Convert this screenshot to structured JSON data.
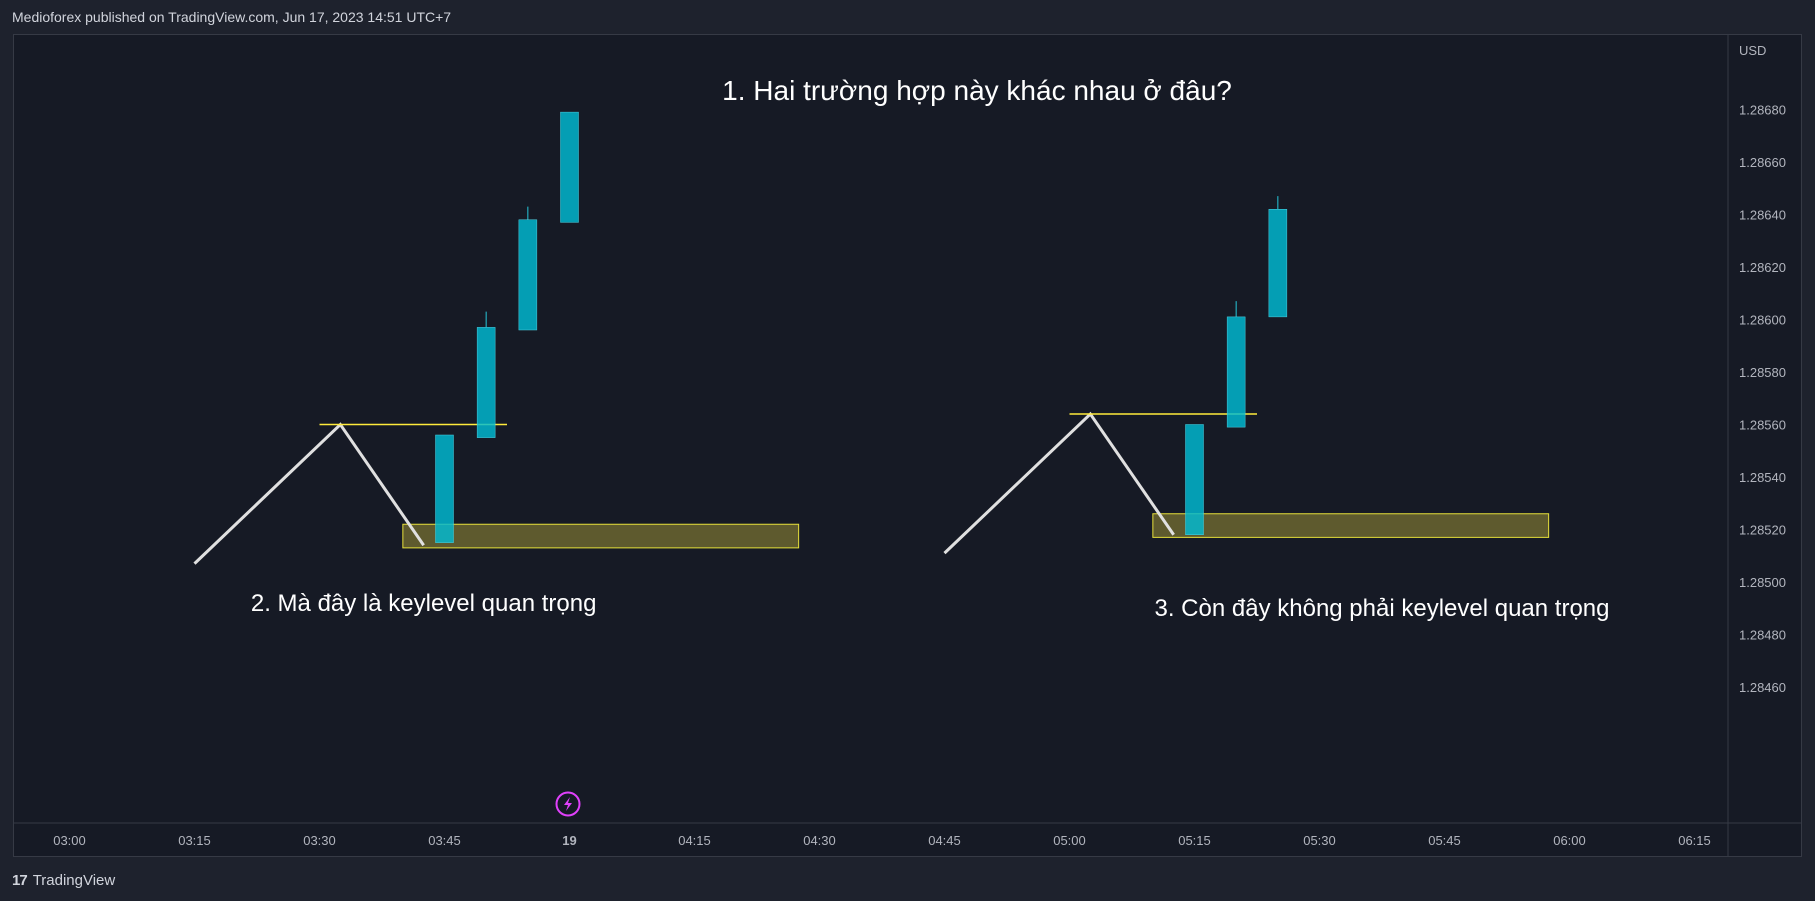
{
  "header": {
    "text": "Medioforex published on TradingView.com, Jun 17, 2023 14:51 UTC+7"
  },
  "footer": {
    "brand": "TradingView",
    "logo": "17"
  },
  "colors": {
    "background": "#161a25",
    "candle_body": "#00bcd4",
    "wick": "#26c6da",
    "level_line": "#ffeb3b",
    "zone_fill": "#6b6630",
    "zone_border": "#e6e03a",
    "swing_line": "#e0e0e0",
    "alert_icon": "#e040fb"
  },
  "chart_data": {
    "type": "candlestick",
    "title": "1. Hai trường hợp này khác nhau ở đâu?",
    "currency": "USD",
    "ylim": [
      1.28447,
      1.28708
    ],
    "yticks": [
      "1.28460",
      "1.28480",
      "1.28500",
      "1.28520",
      "1.28540",
      "1.28560",
      "1.28580",
      "1.28600",
      "1.28620",
      "1.28640",
      "1.28660",
      "1.28680"
    ],
    "xticks": [
      "03:00",
      "03:15",
      "03:30",
      "03:45",
      "19",
      "04:15",
      "04:30",
      "04:45",
      "05:00",
      "05:15",
      "05:30",
      "05:45",
      "06:00",
      "06:15"
    ],
    "candles": [
      {
        "time": 3.75,
        "open": 1.28515,
        "close": 1.28556,
        "high": 1.28556,
        "low": 1.28515
      },
      {
        "time": 3.8333,
        "open": 1.28555,
        "close": 1.28597,
        "high": 1.28603,
        "low": 1.28555
      },
      {
        "time": 3.9167,
        "open": 1.28596,
        "close": 1.28638,
        "high": 1.28643,
        "low": 1.28596
      },
      {
        "time": 4.0,
        "open": 1.28637,
        "close": 1.28679,
        "high": 1.28679,
        "low": 1.28637
      },
      {
        "time": 5.25,
        "open": 1.28518,
        "close": 1.2856,
        "high": 1.2856,
        "low": 1.28518
      },
      {
        "time": 5.3333,
        "open": 1.28559,
        "close": 1.28601,
        "high": 1.28607,
        "low": 1.28559
      },
      {
        "time": 5.4167,
        "open": 1.28601,
        "close": 1.28642,
        "high": 1.28647,
        "low": 1.28601
      }
    ],
    "levels": [
      {
        "t1": 3.5,
        "t2": 3.875,
        "price": 1.2856
      },
      {
        "t1": 5.0,
        "t2": 5.375,
        "price": 1.28564
      }
    ],
    "zones": [
      {
        "t1": 3.6667,
        "t2": 4.4583,
        "price_top": 1.28522,
        "price_bottom": 1.28513
      },
      {
        "t1": 5.1667,
        "t2": 5.9583,
        "price_top": 1.28526,
        "price_bottom": 1.28517
      }
    ],
    "swings": [
      [
        {
          "t": 3.25,
          "p": 1.28507
        },
        {
          "t": 3.5417,
          "p": 1.2856
        },
        {
          "t": 3.7083,
          "p": 1.28514
        }
      ],
      [
        {
          "t": 4.75,
          "p": 1.28511
        },
        {
          "t": 5.0417,
          "p": 1.28564
        },
        {
          "t": 5.2083,
          "p": 1.28518
        }
      ]
    ],
    "annotations": [
      {
        "text": "2. Mà đây là keylevel quan trọng",
        "t": 3.7083,
        "p": 1.28489
      },
      {
        "text": "3. Còn đây không phải keylevel quan trọng",
        "t": 5.625,
        "p": 1.28487
      }
    ]
  }
}
